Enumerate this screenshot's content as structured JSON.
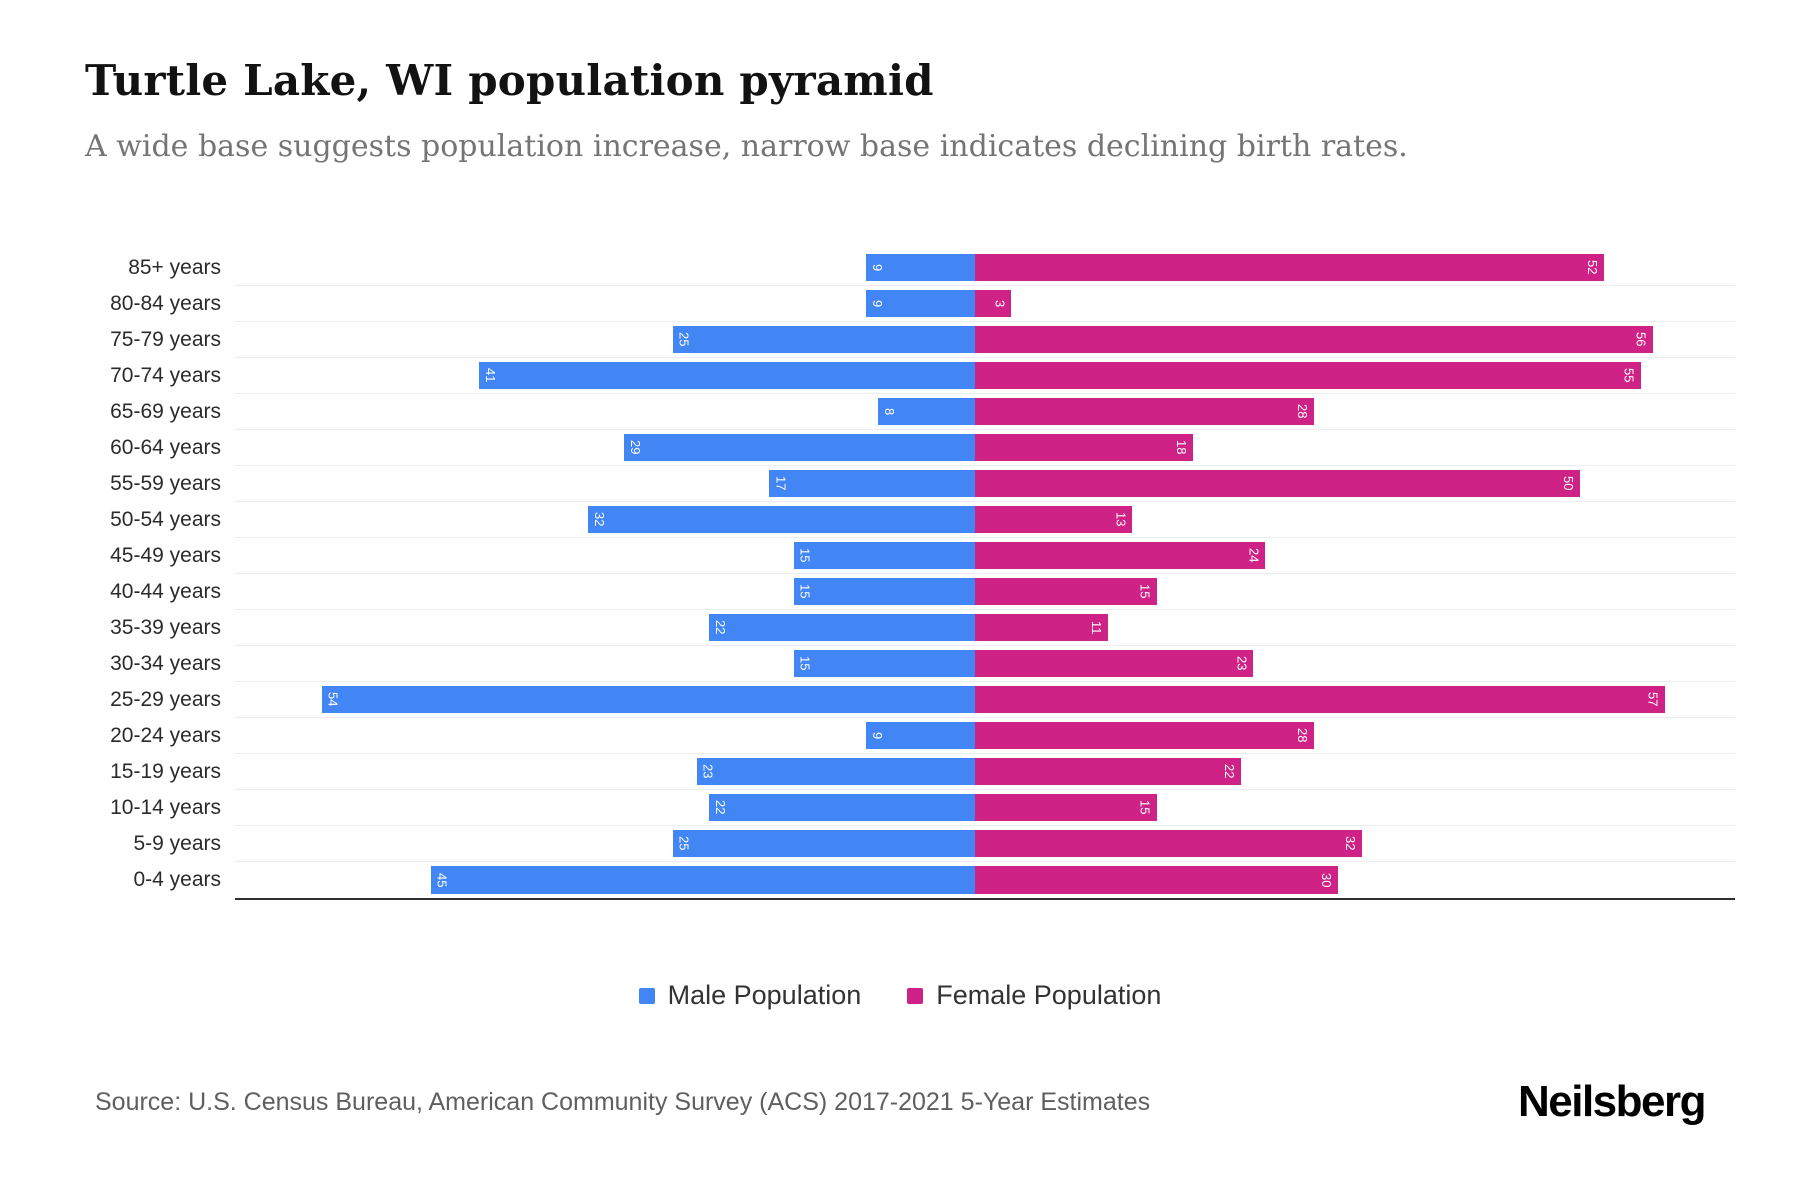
{
  "header": {
    "title": "Turtle Lake, WI population pyramid",
    "subtitle": "A wide base suggests population increase, narrow base indicates declining birth rates."
  },
  "chart_data": {
    "type": "bar",
    "variant": "population-pyramid",
    "orientation": "horizontal",
    "categories": [
      "85+ years",
      "80-84 years",
      "75-79 years",
      "70-74 years",
      "65-69 years",
      "60-64 years",
      "55-59 years",
      "50-54 years",
      "45-49 years",
      "40-44 years",
      "35-39 years",
      "30-34 years",
      "25-29 years",
      "20-24 years",
      "15-19 years",
      "10-14 years",
      "5-9 years",
      "0-4 years"
    ],
    "series": [
      {
        "name": "Male Population",
        "side": "left",
        "color": "#4285F4",
        "values": [
          9,
          9,
          25,
          41,
          8,
          29,
          17,
          32,
          15,
          15,
          22,
          15,
          54,
          9,
          23,
          22,
          25,
          45
        ]
      },
      {
        "name": "Female Population",
        "side": "right",
        "color": "#CE2286",
        "values": [
          52,
          3,
          56,
          55,
          28,
          18,
          50,
          13,
          24,
          15,
          11,
          23,
          57,
          28,
          22,
          15,
          32,
          30
        ]
      }
    ],
    "value_labels": "inside-end-rotated-90",
    "legend_position": "bottom",
    "xlim_each_side": 60,
    "grid": "horizontal-light"
  },
  "legend": {
    "male_label": "Male Population",
    "female_label": "Female Population"
  },
  "footer": {
    "source": "Source: U.S. Census Bureau, American Community Survey (ACS) 2017-2021 5-Year Estimates",
    "brand": "Neilsberg"
  }
}
